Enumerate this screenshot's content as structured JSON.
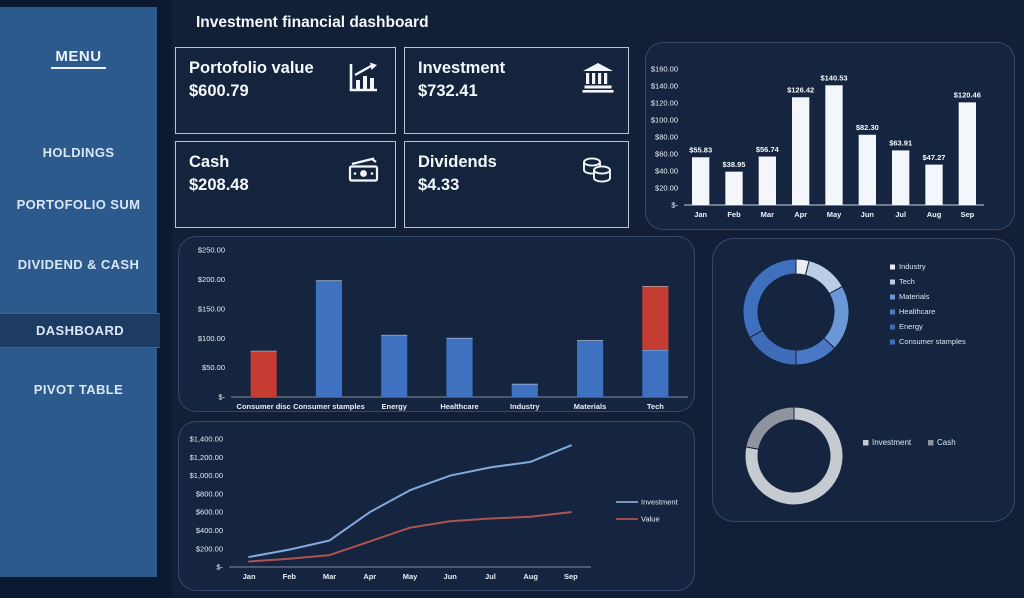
{
  "app": {
    "title": "Investment financial dashboard"
  },
  "sidebar": {
    "menu_label": "MENU",
    "items": [
      {
        "label": "HOLDINGS",
        "active": false
      },
      {
        "label": "PORTOFOLIO SUM",
        "active": false
      },
      {
        "label": "DIVIDEND & CASH",
        "active": false
      },
      {
        "label": "DASHBOARD",
        "active": true
      },
      {
        "label": "PIVOT TABLE",
        "active": false
      }
    ]
  },
  "kpis": [
    {
      "label": "Portofolio value",
      "value": "$600.79",
      "icon": "bar-chart-rising-icon"
    },
    {
      "label": "Investment",
      "value": "$732.41",
      "icon": "bank-icon"
    },
    {
      "label": "Cash",
      "value": "$208.48",
      "icon": "banknote-icon"
    },
    {
      "label": "Dividends",
      "value": "$4.33",
      "icon": "coins-icon"
    }
  ],
  "colors": {
    "background": "#121f36",
    "panel": "#15253f",
    "sidebar": "#2d5a8d",
    "sidebar_active": "#1d3c63",
    "bar_white": "#f3f6fa",
    "bar_blue": "#3e72c1",
    "bar_red": "#c43c32",
    "line_investment": "#82aadd",
    "line_value": "#ad5351"
  },
  "chart_data": [
    {
      "id": "monthly-portfolio-bars",
      "type": "bar",
      "title": "",
      "categories": [
        "Jan",
        "Feb",
        "Mar",
        "Apr",
        "May",
        "Jun",
        "Jul",
        "Aug",
        "Sep"
      ],
      "values": [
        55.83,
        38.95,
        56.74,
        126.42,
        140.53,
        82.3,
        63.91,
        47.27,
        120.46
      ],
      "data_labels": [
        "$55.83",
        "$38.95",
        "$56.74",
        "$126.42",
        "$140.53",
        "$82.30",
        "$63.91",
        "$47.27",
        "$120.46"
      ],
      "y_ticks": [
        "$160.00",
        "$140.00",
        "$120.00",
        "$100.00",
        "$80.00",
        "$60.00",
        "$40.00",
        "$20.00",
        "$-"
      ],
      "ylim": [
        0,
        160
      ],
      "grid": false,
      "bar_color": "#f3f6fa"
    },
    {
      "id": "sector-bars",
      "type": "bar",
      "title": "",
      "categories": [
        "Consumer disc",
        "Consumer stamples",
        "Energy",
        "Healthcare",
        "Industry",
        "Materials",
        "Tech"
      ],
      "bars": [
        {
          "segments": [
            {
              "value": 78,
              "color": "#c43c32"
            }
          ]
        },
        {
          "segments": [
            {
              "value": 198,
              "color": "#3e72c1"
            }
          ]
        },
        {
          "segments": [
            {
              "value": 105,
              "color": "#3e72c1"
            }
          ]
        },
        {
          "segments": [
            {
              "value": 100,
              "color": "#3e72c1"
            }
          ]
        },
        {
          "segments": [
            {
              "value": 22,
              "color": "#3e72c1"
            }
          ]
        },
        {
          "segments": [
            {
              "value": 96,
              "color": "#3e72c1"
            }
          ]
        },
        {
          "segments": [
            {
              "value": 80,
              "color": "#3e72c1"
            },
            {
              "value": 108,
              "color": "#c43c32"
            }
          ]
        }
      ],
      "y_ticks": [
        "$250.00",
        "$200.00",
        "$150.00",
        "$100.00",
        "$50.00",
        "$-"
      ],
      "ylim": [
        0,
        250
      ],
      "grid": false
    },
    {
      "id": "investment-value-line",
      "type": "line",
      "title": "",
      "x": [
        "Jan",
        "Feb",
        "Mar",
        "Apr",
        "May",
        "Jun",
        "Jul",
        "Aug",
        "Sep"
      ],
      "series": [
        {
          "name": "Investment",
          "color": "#82aadd",
          "values": [
            110,
            190,
            290,
            600,
            840,
            1000,
            1090,
            1150,
            1330
          ]
        },
        {
          "name": "Value",
          "color": "#ad5351",
          "values": [
            60,
            90,
            130,
            280,
            430,
            500,
            530,
            550,
            600
          ]
        }
      ],
      "y_ticks": [
        "$1,400.00",
        "$1,200.00",
        "$1,000.00",
        "$800.00",
        "$600.00",
        "$400.00",
        "$200.00",
        "$-"
      ],
      "ylim": [
        0,
        1400
      ],
      "grid": false,
      "legend_position": "right"
    },
    {
      "id": "sector-donut",
      "type": "pie",
      "donut": true,
      "title": "",
      "legend_position": "right",
      "slices": [
        {
          "label": "Industry",
          "pct": 4,
          "color": "#e9edf3"
        },
        {
          "label": "Tech",
          "pct": 13,
          "color": "#b9cde7"
        },
        {
          "label": "Materials",
          "pct": 20,
          "color": "#6b97d7"
        },
        {
          "label": "Healthcare",
          "pct": 13,
          "color": "#4a78c4"
        },
        {
          "label": "Energy",
          "pct": 17,
          "color": "#3e6cb8"
        },
        {
          "label": "Consumer stamples",
          "pct": 33,
          "color": "#3f70bd"
        }
      ]
    },
    {
      "id": "investment-cash-donut",
      "type": "pie",
      "donut": true,
      "title": "",
      "legend_position": "right",
      "slices": [
        {
          "label": "Investment",
          "pct": 78,
          "color": "#c6cad1"
        },
        {
          "label": "Cash",
          "pct": 22,
          "color": "#8f959e"
        }
      ]
    }
  ]
}
